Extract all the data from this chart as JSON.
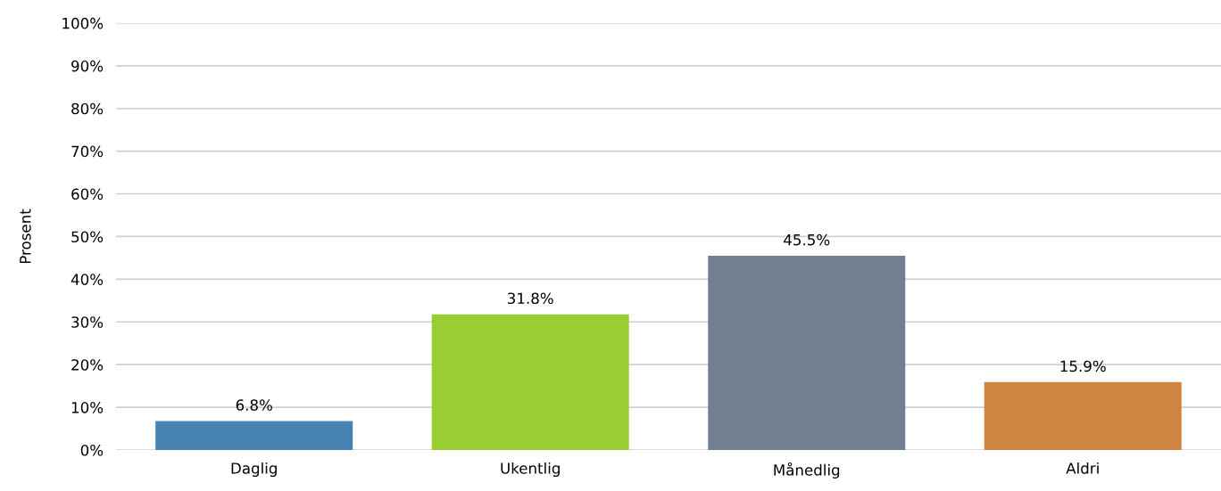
{
  "chart_data": {
    "type": "bar",
    "ylabel": "Prosent",
    "categories": [
      "Daglig",
      "Ukentlig",
      "Månedlig",
      "Aldri"
    ],
    "values": [
      6.8,
      31.8,
      45.5,
      15.9
    ],
    "colors": [
      "#4682b4",
      "#9acd32",
      "#708090",
      "#cd853f"
    ],
    "value_labels": [
      "6.8%",
      "31.8%",
      "45.5%",
      "15.9%"
    ],
    "ylim": [
      0,
      100
    ],
    "yticks": [
      {
        "value": 0,
        "label": "0%"
      },
      {
        "value": 10,
        "label": "10%"
      },
      {
        "value": 20,
        "label": "20%"
      },
      {
        "value": 30,
        "label": "30%"
      },
      {
        "value": 40,
        "label": "40%"
      },
      {
        "value": 50,
        "label": "50%"
      },
      {
        "value": 60,
        "label": "60%"
      },
      {
        "value": 70,
        "label": "70%"
      },
      {
        "value": 80,
        "label": "80%"
      },
      {
        "value": 90,
        "label": "90%"
      },
      {
        "value": 100,
        "label": "100%"
      }
    ],
    "grid": "y",
    "legend": false
  }
}
